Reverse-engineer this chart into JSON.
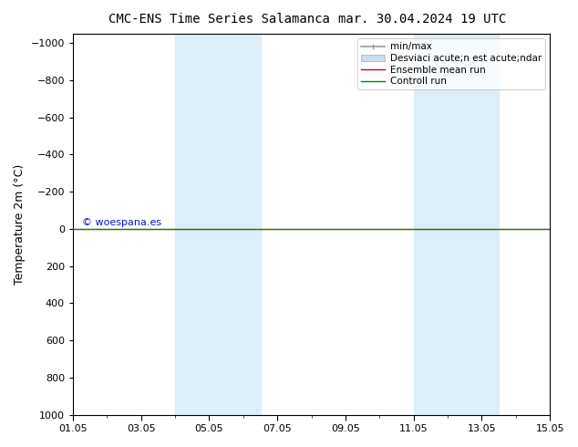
{
  "title_left": "CMC-ENS Time Series Salamanca",
  "title_right": "mar. 30.04.2024 19 UTC",
  "ylabel": "Temperature 2m (°C)",
  "ylim_bottom": 1000,
  "ylim_top": -1050,
  "yticks": [
    -1000,
    -800,
    -600,
    -400,
    -200,
    0,
    200,
    400,
    600,
    800,
    1000
  ],
  "xlim": [
    0,
    14
  ],
  "xtick_labels": [
    "01.05",
    "03.05",
    "05.05",
    "07.05",
    "09.05",
    "11.05",
    "13.05",
    "15.05"
  ],
  "xtick_positions": [
    0,
    2,
    4,
    6,
    8,
    10,
    12,
    14
  ],
  "shade_bands": [
    {
      "xstart": 3.0,
      "xend": 5.5
    },
    {
      "xstart": 10.0,
      "xend": 12.5
    }
  ],
  "shade_color": "#ddeef8",
  "control_run_y": 0,
  "control_run_color": "#008800",
  "ensemble_mean_color": "#cc0000",
  "minmax_color": "#999999",
  "std_color": "#ccddee",
  "watermark": "© woespana.es",
  "watermark_color": "#1111cc",
  "legend_label_minmax": "min/max",
  "legend_label_std": "Desviaci acute;n est acute;ndar",
  "legend_label_ens": "Ensemble mean run",
  "legend_label_ctrl": "Controll run",
  "background_color": "#ffffff",
  "title_fontsize": 10,
  "axis_label_fontsize": 9,
  "tick_fontsize": 8,
  "legend_fontsize": 7.5
}
